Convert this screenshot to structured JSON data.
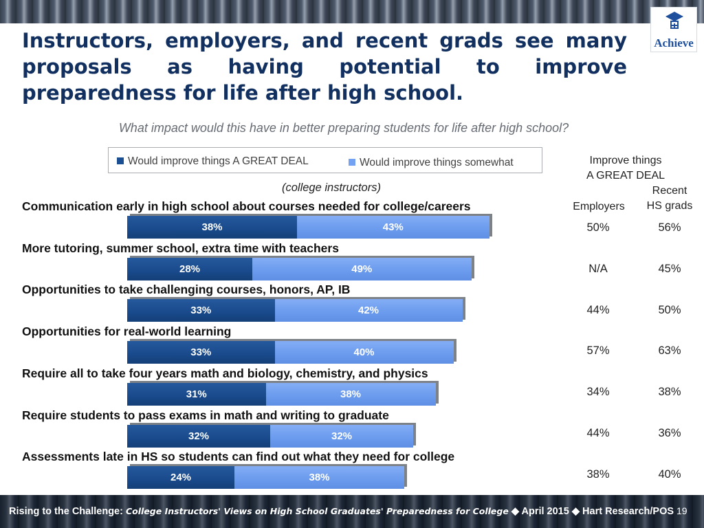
{
  "logo": {
    "text": "Achieve",
    "icon": "hat-logo-icon"
  },
  "title": "Instructors, employers, and recent grads see many proposals as having potential to improve preparedness for life after high school.",
  "subtitle": "What impact would this have in better preparing students for life after high school?",
  "legend": {
    "great_deal": "Would improve things A GREAT DEAL",
    "somewhat": "Would improve things somewhat"
  },
  "right_header": {
    "line1": "Improve things",
    "line2": "A GREAT DEAL",
    "employers": "Employers",
    "grads_line1": "Recent",
    "grads_line2": "HS grads"
  },
  "group_label": "(college instructors)",
  "colors": {
    "great_deal": "#1a4f94",
    "somewhat": "#73a2f2",
    "title": "#12305f"
  },
  "chart_data": {
    "type": "bar",
    "orientation": "horizontal",
    "stacked": true,
    "categories": [
      "Communication early in high school about courses needed for college/careers",
      "More tutoring, summer school, extra time with teachers",
      "Opportunities to take challenging courses, honors, AP, IB",
      "Opportunities for real-world learning",
      "Require all to take four years math and biology, chemistry, and physics",
      "Require students to pass exams in math and writing to graduate",
      "Assessments late in HS so students can find out what they need for college"
    ],
    "series": [
      {
        "name": "Would improve things A GREAT DEAL",
        "values": [
          38,
          28,
          33,
          33,
          31,
          32,
          24
        ],
        "labels": [
          "38%",
          "28%",
          "33%",
          "33%",
          "31%",
          "32%",
          "24%"
        ]
      },
      {
        "name": "Would improve things somewhat",
        "values": [
          43,
          49,
          42,
          40,
          38,
          32,
          38
        ],
        "labels": [
          "43%",
          "49%",
          "42%",
          "40%",
          "38%",
          "32%",
          "38%"
        ]
      }
    ],
    "table": {
      "employers": [
        "50%",
        "N/A",
        "44%",
        "57%",
        "34%",
        "44%",
        "38%"
      ],
      "recent_hs_grads": [
        "56%",
        "45%",
        "50%",
        "63%",
        "38%",
        "36%",
        "40%"
      ]
    },
    "legend_position": "top",
    "grid": false
  },
  "footer": {
    "source_prefix": "Rising to the Challenge:",
    "source_title": "College Instructors' Views on High School Graduates' Preparedness for College",
    "date": "April 2015",
    "org": "Hart Research/POS",
    "separator": "◆",
    "page": "19"
  }
}
